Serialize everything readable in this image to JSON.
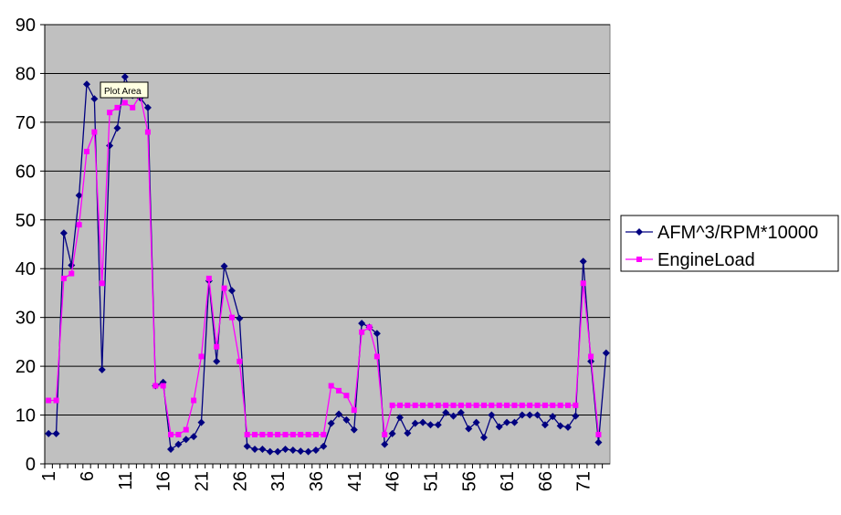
{
  "chart_data": {
    "type": "line",
    "categories": [
      1,
      null,
      null,
      null,
      null,
      6,
      null,
      null,
      null,
      null,
      11,
      null,
      null,
      null,
      null,
      16,
      null,
      null,
      null,
      null,
      21,
      null,
      null,
      null,
      null,
      26,
      null,
      null,
      null,
      null,
      31,
      null,
      null,
      null,
      null,
      36,
      null,
      null,
      null,
      null,
      41,
      null,
      null,
      null,
      null,
      46,
      null,
      null,
      null,
      null,
      51,
      null,
      null,
      null,
      null,
      56,
      null,
      null,
      null,
      null,
      61,
      null,
      null,
      null,
      null,
      66,
      null,
      null,
      null,
      null,
      71,
      null,
      null,
      null
    ],
    "series": [
      {
        "name": "AFM^3/RPM*10000",
        "color": "#000080",
        "marker": "diamond",
        "values": [
          6.2,
          6.2,
          47.3,
          40.7,
          55,
          77.8,
          74.8,
          19.3,
          65.2,
          68.8,
          79.3,
          75.5,
          75,
          73,
          16,
          16.7,
          3,
          4,
          5,
          5.6,
          8.5,
          37.5,
          21,
          40.5,
          35.5,
          29.8,
          3.6,
          3,
          3,
          2.5,
          2.5,
          3,
          2.8,
          2.6,
          2.5,
          2.8,
          3.6,
          8.3,
          10.2,
          9,
          7,
          28.8,
          28,
          26.7,
          4,
          6.2,
          9.5,
          6.3,
          8.3,
          8.5,
          8,
          8,
          10.5,
          9.8,
          10.5,
          7.2,
          8.5,
          5.4,
          10,
          7.6,
          8.5,
          8.5,
          10,
          10,
          10,
          8,
          9.7,
          7.8,
          7.5,
          9.8,
          41.5,
          21,
          4.4,
          22.7
        ]
      },
      {
        "name": "EngineLoad",
        "color": "#ff00ff",
        "marker": "square",
        "values": [
          13,
          13,
          38,
          39,
          49,
          64,
          68,
          37,
          72,
          73,
          74,
          73,
          75.5,
          68,
          16,
          16,
          6,
          6,
          7,
          13,
          22,
          38,
          24,
          36,
          30,
          21,
          6,
          6,
          6,
          6,
          6,
          6,
          6,
          6,
          6,
          6,
          6,
          16,
          15,
          14,
          11,
          27,
          28,
          22,
          6,
          12,
          12,
          12,
          12,
          12,
          12,
          12,
          12,
          12,
          12,
          12,
          12,
          12,
          12,
          12,
          12,
          12,
          12,
          12,
          12,
          12,
          12,
          12,
          12,
          12,
          37,
          22,
          6,
          null
        ]
      }
    ],
    "ylim": [
      0,
      90
    ],
    "yticks": [
      0,
      10,
      20,
      30,
      40,
      50,
      60,
      70,
      80,
      90
    ],
    "grid": true,
    "plot_background": "#c0c0c0",
    "legend": "right",
    "tooltip": "Plot Area"
  }
}
